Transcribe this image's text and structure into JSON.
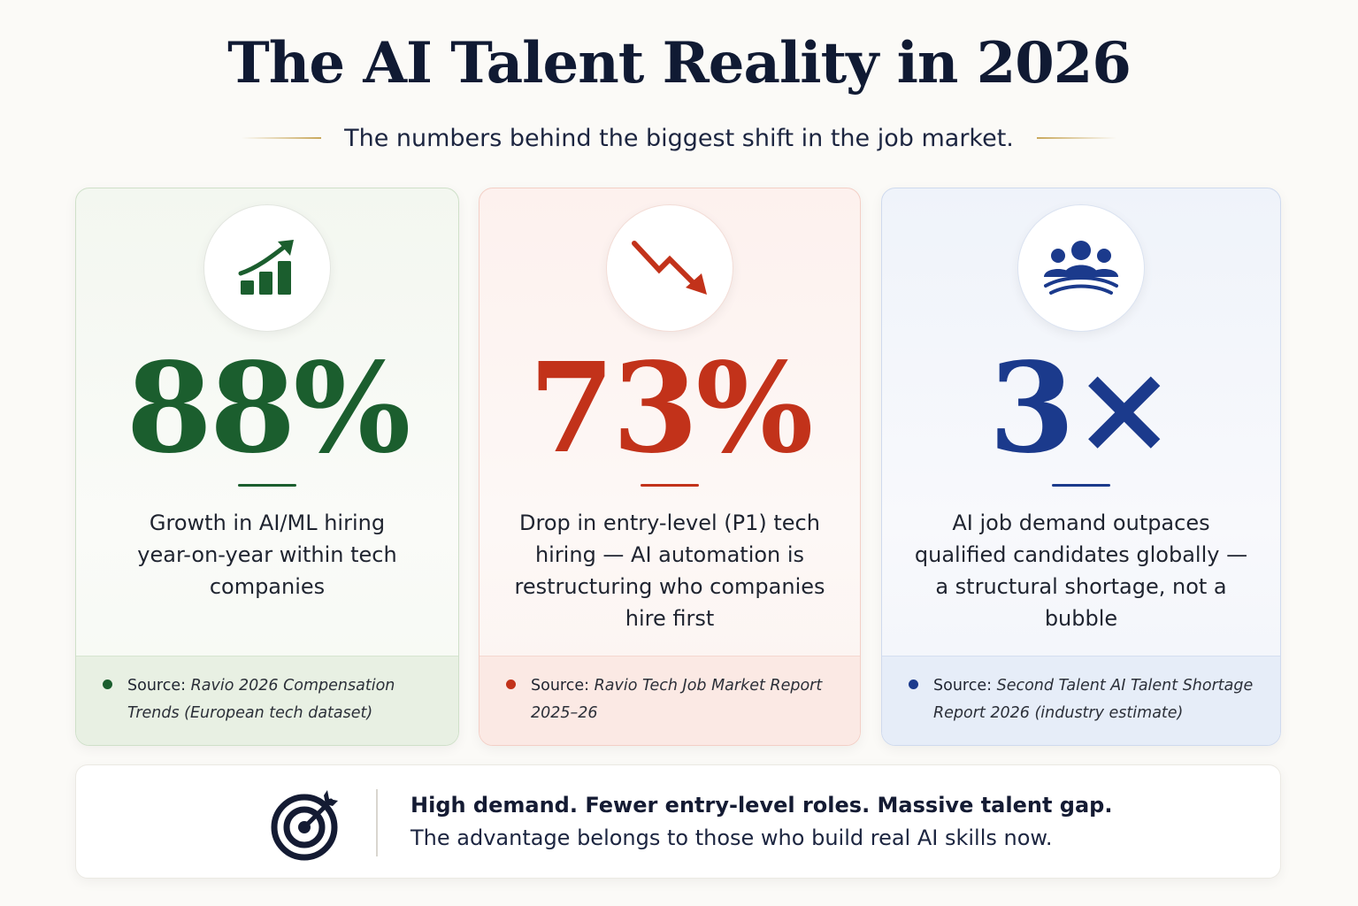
{
  "header": {
    "title": "The AI Talent Reality in 2026",
    "subtitle": "The numbers behind the biggest shift in the job market."
  },
  "cards": [
    {
      "icon": "trending-up-bar-chart-icon",
      "color": "#1b5e2e",
      "stat": "88%",
      "description": "Growth in AI/ML hiring year-on-year within tech companies",
      "source_label": "Source:",
      "source_text": "Ravio 2026 Compensation Trends (European tech dataset)"
    },
    {
      "icon": "trending-down-arrow-icon",
      "color": "#c2321a",
      "stat": "73%",
      "description": "Drop in entry-level (P1) tech hiring — AI automation is restructuring who companies hire first",
      "source_label": "Source:",
      "source_text": "Ravio Tech Job Market Report 2025–26"
    },
    {
      "icon": "people-group-icon",
      "color": "#1b3a8c",
      "stat": "3×",
      "description": "AI job demand outpaces qualified candidates globally — a structural shortage, not a bubble",
      "source_label": "Source:",
      "source_text": "Second Talent AI Talent Shortage Report 2026 (industry estimate)"
    }
  ],
  "banner": {
    "icon": "target-arrow-icon",
    "headline": "High demand. Fewer entry-level roles. Massive talent gap.",
    "text": "The advantage belongs to those who build real AI skills now."
  }
}
